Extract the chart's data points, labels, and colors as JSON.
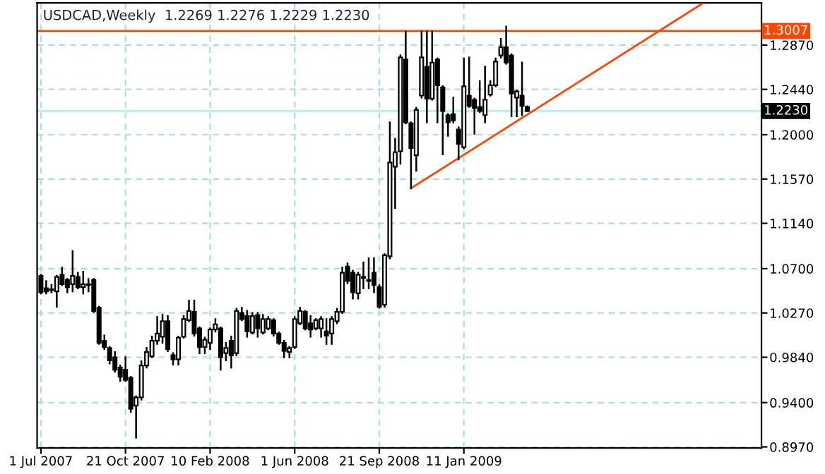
{
  "chart_data": {
    "type": "candlestick",
    "title": "USDCAD,Weekly  1.2269 1.2276 1.2229 1.2230",
    "x": [
      "2007-07-01",
      "2007-07-08",
      "2007-07-15",
      "2007-07-22",
      "2007-07-29",
      "2007-08-05",
      "2007-08-12",
      "2007-08-19",
      "2007-08-26",
      "2007-09-02",
      "2007-09-09",
      "2007-09-16",
      "2007-09-23",
      "2007-09-30",
      "2007-10-07",
      "2007-10-14",
      "2007-10-21",
      "2007-10-28",
      "2007-11-04",
      "2007-11-11",
      "2007-11-18",
      "2007-11-25",
      "2007-12-02",
      "2007-12-09",
      "2007-12-16",
      "2007-12-23",
      "2007-12-30",
      "2008-01-06",
      "2008-01-13",
      "2008-01-20",
      "2008-01-27",
      "2008-02-03",
      "2008-02-10",
      "2008-02-17",
      "2008-02-24",
      "2008-03-02",
      "2008-03-09",
      "2008-03-16",
      "2008-03-23",
      "2008-03-30",
      "2008-04-06",
      "2008-04-13",
      "2008-04-20",
      "2008-04-27",
      "2008-05-04",
      "2008-05-11",
      "2008-05-18",
      "2008-05-25",
      "2008-06-01",
      "2008-06-08",
      "2008-06-15",
      "2008-06-22",
      "2008-06-29",
      "2008-07-06",
      "2008-07-13",
      "2008-07-20",
      "2008-07-27",
      "2008-08-03",
      "2008-08-10",
      "2008-08-17",
      "2008-08-24",
      "2008-08-31",
      "2008-09-07",
      "2008-09-14",
      "2008-09-21",
      "2008-09-28",
      "2008-10-05",
      "2008-10-12",
      "2008-10-19",
      "2008-10-26",
      "2008-11-02",
      "2008-11-09",
      "2008-11-16",
      "2008-11-23",
      "2008-11-30",
      "2008-12-07",
      "2008-12-14",
      "2008-12-21",
      "2008-12-28",
      "2009-01-04",
      "2009-01-11",
      "2009-01-18",
      "2009-01-25",
      "2009-02-01",
      "2009-02-08",
      "2009-02-15",
      "2009-02-22",
      "2009-03-01",
      "2009-03-08",
      "2009-03-15",
      "2009-03-22",
      "2009-03-29",
      "2009-04-05"
    ],
    "ohlc": [
      [
        1.063,
        1.064,
        1.046,
        1.047
      ],
      [
        1.051,
        1.058,
        1.046,
        1.048
      ],
      [
        1.05,
        1.054,
        1.047,
        1.049
      ],
      [
        1.048,
        1.063,
        1.033,
        1.062
      ],
      [
        1.064,
        1.071,
        1.054,
        1.055
      ],
      [
        1.059,
        1.06,
        1.047,
        1.052
      ],
      [
        1.055,
        1.087,
        1.048,
        1.063
      ],
      [
        1.062,
        1.066,
        1.051,
        1.052
      ],
      [
        1.052,
        1.067,
        1.046,
        1.055
      ],
      [
        1.055,
        1.06,
        1.048,
        1.054
      ],
      [
        1.059,
        1.06,
        1.028,
        1.029
      ],
      [
        1.032,
        1.033,
        0.997,
        0.998
      ],
      [
        1.0,
        1.005,
        0.992,
        0.994
      ],
      [
        0.993,
        0.994,
        0.978,
        0.981
      ],
      [
        0.984,
        0.989,
        0.97,
        0.972
      ],
      [
        0.974,
        0.976,
        0.961,
        0.965
      ],
      [
        0.972,
        0.984,
        0.961,
        0.962
      ],
      [
        0.964,
        0.965,
        0.931,
        0.934
      ],
      [
        0.937,
        0.946,
        0.906,
        0.945
      ],
      [
        0.945,
        0.98,
        0.943,
        0.976
      ],
      [
        0.976,
        0.993,
        0.974,
        0.989
      ],
      [
        0.985,
        1.004,
        0.984,
        1.0
      ],
      [
        1.0,
        1.023,
        0.997,
        1.007
      ],
      [
        1.004,
        1.025,
        0.998,
        1.019
      ],
      [
        1.019,
        1.024,
        0.99,
        0.992
      ],
      [
        0.986,
        0.988,
        0.977,
        0.982
      ],
      [
        0.982,
        1.004,
        0.977,
        1.003
      ],
      [
        1.004,
        1.024,
        1.003,
        1.021
      ],
      [
        1.02,
        1.039,
        1.019,
        1.029
      ],
      [
        1.028,
        1.039,
        1.005,
        1.007
      ],
      [
        1.012,
        1.013,
        0.988,
        0.994
      ],
      [
        0.994,
        1.003,
        0.988,
        1.001
      ],
      [
        0.998,
        1.012,
        0.992,
        1.011
      ],
      [
        1.011,
        1.021,
        1.009,
        1.016
      ],
      [
        1.012,
        1.013,
        0.972,
        0.984
      ],
      [
        0.988,
        0.998,
        0.981,
        0.993
      ],
      [
        1.0,
        1.004,
        0.974,
        0.986
      ],
      [
        0.988,
        1.031,
        0.986,
        1.029
      ],
      [
        1.027,
        1.032,
        1.02,
        1.021
      ],
      [
        1.024,
        1.029,
        1.004,
        1.009
      ],
      [
        1.008,
        1.027,
        1.007,
        1.024
      ],
      [
        1.025,
        1.027,
        1.004,
        1.012
      ],
      [
        1.008,
        1.025,
        1.007,
        1.021
      ],
      [
        1.012,
        1.023,
        1.011,
        1.021
      ],
      [
        1.02,
        1.021,
        1.005,
        1.007
      ],
      [
        1.007,
        1.008,
        0.997,
        0.998
      ],
      [
        0.998,
        1.0,
        0.984,
        0.99
      ],
      [
        0.989,
        0.994,
        0.984,
        0.993
      ],
      [
        0.994,
        1.023,
        0.993,
        1.021
      ],
      [
        1.017,
        1.032,
        1.016,
        1.029
      ],
      [
        1.028,
        1.029,
        1.011,
        1.012
      ],
      [
        1.017,
        1.024,
        1.004,
        1.011
      ],
      [
        1.012,
        1.021,
        1.011,
        1.02
      ],
      [
        1.012,
        1.023,
        1.004,
        1.021
      ],
      [
        1.009,
        1.021,
        0.997,
        1.005
      ],
      [
        1.007,
        1.023,
        0.997,
        1.021
      ],
      [
        1.019,
        1.031,
        1.017,
        1.028
      ],
      [
        1.028,
        1.071,
        1.027,
        1.066
      ],
      [
        1.072,
        1.075,
        1.056,
        1.058
      ],
      [
        1.066,
        1.068,
        1.041,
        1.047
      ],
      [
        1.046,
        1.066,
        1.041,
        1.064
      ],
      [
        1.061,
        1.076,
        1.051,
        1.062
      ],
      [
        1.058,
        1.08,
        1.051,
        1.059
      ],
      [
        1.066,
        1.08,
        1.047,
        1.054
      ],
      [
        1.052,
        1.054,
        1.032,
        1.033
      ],
      [
        1.035,
        1.084,
        1.033,
        1.083
      ],
      [
        1.082,
        1.212,
        1.08,
        1.173
      ],
      [
        1.169,
        1.196,
        1.129,
        1.183
      ],
      [
        1.184,
        1.277,
        1.172,
        1.275
      ],
      [
        1.273,
        1.3,
        1.211,
        1.212
      ],
      [
        1.211,
        1.212,
        1.148,
        1.187
      ],
      [
        1.18,
        1.226,
        1.165,
        1.224
      ],
      [
        1.238,
        1.3,
        1.236,
        1.275
      ],
      [
        1.266,
        1.3,
        1.212,
        1.235
      ],
      [
        1.235,
        1.3,
        1.234,
        1.27
      ],
      [
        1.273,
        1.274,
        1.212,
        1.248
      ],
      [
        1.246,
        1.247,
        1.181,
        1.223
      ],
      [
        1.219,
        1.22,
        1.199,
        1.212
      ],
      [
        1.22,
        1.236,
        1.212,
        1.214
      ],
      [
        1.205,
        1.207,
        1.176,
        1.191
      ],
      [
        1.188,
        1.274,
        1.187,
        1.247
      ],
      [
        1.238,
        1.275,
        1.227,
        1.228
      ],
      [
        1.234,
        1.235,
        1.201,
        1.226
      ],
      [
        1.227,
        1.252,
        1.222,
        1.223
      ],
      [
        1.219,
        1.266,
        1.212,
        1.234
      ],
      [
        1.239,
        1.252,
        1.238,
        1.248
      ],
      [
        1.248,
        1.274,
        1.247,
        1.271
      ],
      [
        1.277,
        1.293,
        1.275,
        1.285
      ],
      [
        1.285,
        1.305,
        1.269,
        1.27
      ],
      [
        1.277,
        1.278,
        1.218,
        1.24
      ],
      [
        1.236,
        1.243,
        1.218,
        1.242
      ],
      [
        1.238,
        1.27,
        1.219,
        1.228
      ],
      [
        1.2269,
        1.2276,
        1.2229,
        1.223
      ]
    ],
    "series": [
      {
        "type": "line",
        "x": [
          "2008-11-02",
          "2009-11-22"
        ],
        "values": [
          1.148,
          1.327
        ],
        "color": "#ff4500"
      }
    ],
    "xlim": [
      "2007-06-26",
      "2010-02-09"
    ],
    "xticks": [
      {
        "value": "2007-07-01",
        "label": "1 Jul 2007"
      },
      {
        "value": "2007-10-21",
        "label": "21 Oct 2007"
      },
      {
        "value": "2008-02-10",
        "label": "10 Feb 2008"
      },
      {
        "value": "2008-06-01",
        "label": "1 Jun 2008"
      },
      {
        "value": "2008-09-21",
        "label": "21 Sep 2008"
      },
      {
        "value": "2009-01-11",
        "label": "11 Jan 2009"
      }
    ],
    "ylim": [
      0.896,
      1.328
    ],
    "yticks": [
      {
        "value": 1.287,
        "label": "1.2870"
      },
      {
        "value": 1.244,
        "label": "1.2440"
      },
      {
        "value": 1.2,
        "label": "1.2000"
      },
      {
        "value": 1.157,
        "label": "1.1570"
      },
      {
        "value": 1.114,
        "label": "1.1140"
      },
      {
        "value": 1.07,
        "label": "1.0700"
      },
      {
        "value": 1.027,
        "label": "1.0270"
      },
      {
        "value": 0.984,
        "label": "0.9840"
      },
      {
        "value": 0.94,
        "label": "0.9400"
      },
      {
        "value": 0.897,
        "label": "0.8970"
      }
    ],
    "ref_lines": [
      {
        "axis": "y",
        "value": 1.3007,
        "label": "1.3007",
        "color": "#ff4500"
      },
      {
        "axis": "y",
        "value": 1.223,
        "label": "1.2230",
        "color": "#b0f0f0"
      }
    ],
    "grid": true
  }
}
